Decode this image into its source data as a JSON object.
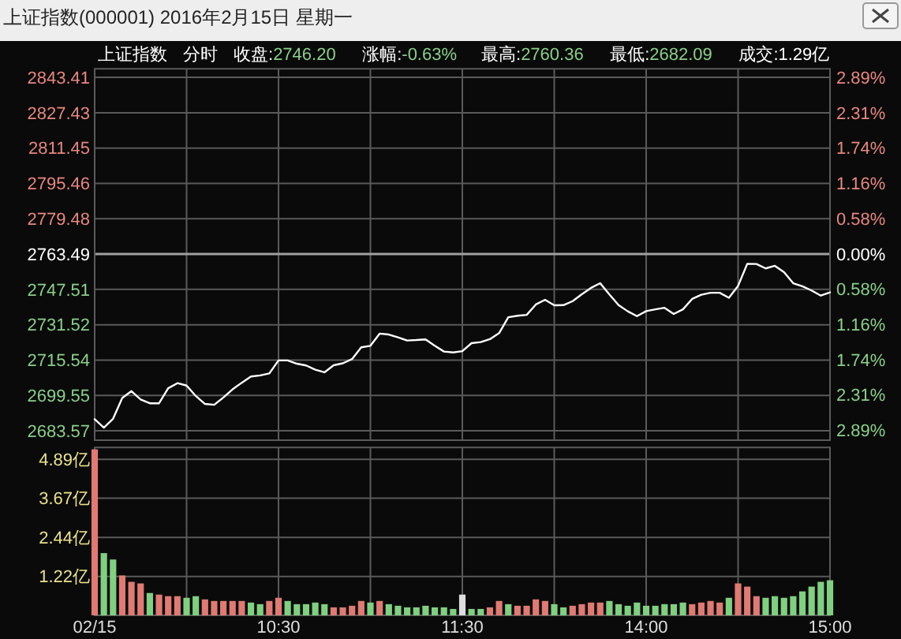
{
  "chart_data": [
    {
      "type": "line",
      "title": "上证指数(000001) 2016年2月15日 星期一",
      "annotations": [
        "上证指数",
        "分时",
        "收盘:2746.20",
        "涨幅:-0.63%",
        "最高:2760.36",
        "最低:2682.09",
        "成交:1.29亿"
      ],
      "categories": [
        null,
        null,
        null,
        null,
        null,
        null,
        null,
        null,
        null,
        null,
        null,
        null,
        null,
        null,
        null,
        null,
        null,
        null,
        null,
        null,
        null,
        null,
        null,
        null,
        null,
        null,
        null,
        null,
        null,
        null,
        null,
        null,
        null,
        null,
        null,
        null,
        null,
        null,
        null,
        null,
        null,
        null,
        null,
        null,
        null,
        null,
        null,
        null,
        null,
        null,
        null,
        null,
        null,
        null,
        null,
        null,
        null,
        null,
        null,
        null,
        null,
        null,
        null,
        null,
        null,
        null,
        null,
        null,
        null,
        null,
        null,
        null,
        null,
        null,
        null,
        null,
        null,
        null,
        null,
        null,
        null
      ],
      "series": [
        {
          "color": "#ffffff",
          "values": [
            2688.8,
            2685.0,
            2689.0,
            2698.4,
            2701.5,
            2697.7,
            2696.0,
            2696.0,
            2702.8,
            2705.1,
            2704.0,
            2699.3,
            2695.7,
            2695.3,
            2698.6,
            2702.3,
            2705.3,
            2708.1,
            2708.6,
            2709.5,
            2715.4,
            2715.4,
            2713.9,
            2713.1,
            2711.2,
            2710.0,
            2713.2,
            2714.1,
            2716.0,
            2721.3,
            2722.0,
            2727.5,
            2727.1,
            2725.8,
            2724.4,
            2724.6,
            2724.9,
            2722.0,
            2719.4,
            2719.0,
            2719.6,
            2723.2,
            2723.7,
            2725.0,
            2727.7,
            2734.9,
            2735.6,
            2736.0,
            2740.7,
            2742.8,
            2740.3,
            2740.4,
            2742.2,
            2745.3,
            2748.2,
            2750.3,
            2745.2,
            2740.4,
            2737.6,
            2735.4,
            2737.7,
            2738.5,
            2739.2,
            2736.4,
            2738.5,
            2743.2,
            2745.1,
            2746.0,
            2746.0,
            2743.7,
            2749.1,
            2759.1,
            2759.0,
            2757.0,
            2758.2,
            2755.3,
            2750.3,
            2748.9,
            2747.0,
            2744.7,
            2746.2
          ]
        }
      ],
      "ylim": [
        2679.3,
        2847.3
      ],
      "yticks": [
        {
          "value": 2843.41,
          "label": "2843.41"
        },
        {
          "value": 2827.43,
          "label": "2827.43"
        },
        {
          "value": 2811.45,
          "label": "2811.45"
        },
        {
          "value": 2795.46,
          "label": "2795.46"
        },
        {
          "value": 2779.48,
          "label": "2779.48"
        },
        {
          "value": 2763.49,
          "label": "2763.49"
        },
        {
          "value": 2747.51,
          "label": "2747.51"
        },
        {
          "value": 2731.52,
          "label": "2731.52"
        },
        {
          "value": 2715.54,
          "label": "2715.54"
        },
        {
          "value": 2699.55,
          "label": "2699.55"
        },
        {
          "value": 2683.57,
          "label": "2683.57"
        }
      ],
      "y2lim": [
        -3.05,
        3.03
      ],
      "y2ticks": [
        {
          "value": 2.89,
          "label": "2.89%"
        },
        {
          "value": 2.31,
          "label": "2.31%"
        },
        {
          "value": 1.74,
          "label": "1.74%"
        },
        {
          "value": 1.16,
          "label": "1.16%"
        },
        {
          "value": 0.58,
          "label": "0.58%"
        },
        {
          "value": 0,
          "label": "0.00%"
        },
        {
          "value": -0.58,
          "label": "0.58%"
        },
        {
          "value": -1.16,
          "label": "1.16%"
        },
        {
          "value": -1.74,
          "label": "1.74%"
        },
        {
          "value": -2.31,
          "label": "2.31%"
        },
        {
          "value": -2.89,
          "label": "2.89%"
        }
      ],
      "ref_lines": [
        {
          "axis": "y",
          "value": 2763.49,
          "color": "#a0a0a0"
        }
      ],
      "grid": true,
      "tick_labels": "y"
    },
    {
      "type": "bar",
      "categories": [
        "02/15",
        null,
        null,
        null,
        null,
        null,
        null,
        null,
        null,
        null,
        null,
        null,
        null,
        null,
        null,
        null,
        null,
        null,
        null,
        null,
        "10:30",
        null,
        null,
        null,
        null,
        null,
        null,
        null,
        null,
        null,
        null,
        null,
        null,
        null,
        null,
        null,
        null,
        null,
        null,
        null,
        "11:30",
        null,
        null,
        null,
        null,
        null,
        null,
        null,
        null,
        null,
        null,
        null,
        null,
        null,
        null,
        null,
        null,
        null,
        null,
        null,
        "14:00",
        null,
        null,
        null,
        null,
        null,
        null,
        null,
        null,
        null,
        null,
        null,
        null,
        null,
        null,
        null,
        null,
        null,
        null,
        null,
        "15:00"
      ],
      "values": [
        5.2,
        1.95,
        1.75,
        1.25,
        1.05,
        1.0,
        0.7,
        0.65,
        0.6,
        0.6,
        0.55,
        0.6,
        0.5,
        0.45,
        0.45,
        0.45,
        0.45,
        0.4,
        0.35,
        0.45,
        0.55,
        0.45,
        0.35,
        0.35,
        0.4,
        0.35,
        0.25,
        0.25,
        0.3,
        0.45,
        0.4,
        0.45,
        0.35,
        0.3,
        0.25,
        0.25,
        0.3,
        0.25,
        0.25,
        0.2,
        0.65,
        0.2,
        0.2,
        0.25,
        0.45,
        0.35,
        0.3,
        0.3,
        0.5,
        0.45,
        0.35,
        0.25,
        0.3,
        0.35,
        0.4,
        0.4,
        0.45,
        0.35,
        0.3,
        0.4,
        0.3,
        0.3,
        0.35,
        0.35,
        0.4,
        0.35,
        0.4,
        0.45,
        0.4,
        0.55,
        1.0,
        0.9,
        0.6,
        0.55,
        0.6,
        0.55,
        0.6,
        0.75,
        0.9,
        1.05,
        1.1
      ],
      "colors": [
        "#e07a72",
        "#7fd07f",
        "#7fd07f",
        "#e07a72",
        "#e07a72",
        "#e07a72",
        "#7fd07f",
        "#e07a72",
        "#e07a72",
        "#e07a72",
        "#7fd07f",
        "#7fd07f",
        "#e07a72",
        "#e07a72",
        "#e07a72",
        "#e07a72",
        "#e07a72",
        "#7fd07f",
        "#7fd07f",
        "#e07a72",
        "#e07a72",
        "#7fd07f",
        "#7fd07f",
        "#7fd07f",
        "#7fd07f",
        "#7fd07f",
        "#e07a72",
        "#e07a72",
        "#e07a72",
        "#e07a72",
        "#7fd07f",
        "#e07a72",
        "#7fd07f",
        "#7fd07f",
        "#7fd07f",
        "#7fd07f",
        "#7fd07f",
        "#7fd07f",
        "#7fd07f",
        "#7fd07f",
        "#dddddd",
        "#7fd07f",
        "#7fd07f",
        "#e07a72",
        "#e07a72",
        "#7fd07f",
        "#e07a72",
        "#e07a72",
        "#e07a72",
        "#e07a72",
        "#7fd07f",
        "#7fd07f",
        "#e07a72",
        "#e07a72",
        "#e07a72",
        "#e07a72",
        "#7fd07f",
        "#7fd07f",
        "#7fd07f",
        "#7fd07f",
        "#7fd07f",
        "#7fd07f",
        "#7fd07f",
        "#7fd07f",
        "#7fd07f",
        "#e07a72",
        "#e07a72",
        "#e07a72",
        "#e07a72",
        "#7fd07f",
        "#e07a72",
        "#e07a72",
        "#e07a72",
        "#7fd07f",
        "#7fd07f",
        "#7fd07f",
        "#7fd07f",
        "#7fd07f",
        "#7fd07f",
        "#7fd07f",
        "#7fd07f"
      ],
      "ylim": [
        0,
        5.26
      ],
      "yticks": [
        {
          "value": 4.89,
          "label": "4.89亿"
        },
        {
          "value": 3.67,
          "label": "3.67亿"
        },
        {
          "value": 2.44,
          "label": "2.44亿"
        },
        {
          "value": 1.22,
          "label": "1.22亿"
        }
      ],
      "grid": true
    }
  ]
}
